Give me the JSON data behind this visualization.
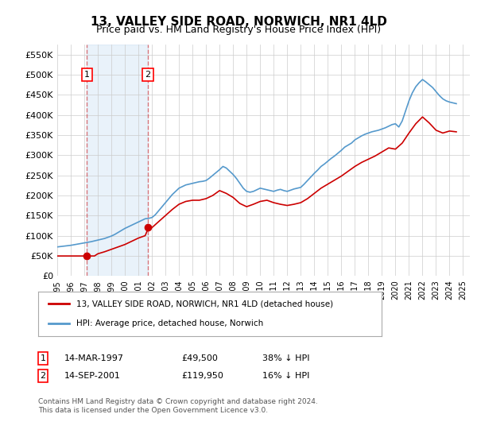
{
  "title": "13, VALLEY SIDE ROAD, NORWICH, NR1 4LD",
  "subtitle": "Price paid vs. HM Land Registry's House Price Index (HPI)",
  "ylabel": "",
  "xlim": [
    1995.0,
    2025.5
  ],
  "ylim": [
    0,
    575000
  ],
  "yticks": [
    0,
    50000,
    100000,
    150000,
    200000,
    250000,
    300000,
    350000,
    400000,
    450000,
    500000,
    550000
  ],
  "ytick_labels": [
    "£0",
    "£50K",
    "£100K",
    "£150K",
    "£200K",
    "£250K",
    "£300K",
    "£350K",
    "£400K",
    "£450K",
    "£500K",
    "£550K"
  ],
  "xticks": [
    1995,
    1996,
    1997,
    1998,
    1999,
    2000,
    2001,
    2002,
    2003,
    2004,
    2005,
    2006,
    2007,
    2008,
    2009,
    2010,
    2011,
    2012,
    2013,
    2014,
    2015,
    2016,
    2017,
    2018,
    2019,
    2020,
    2021,
    2022,
    2023,
    2024,
    2025
  ],
  "purchase1_x": 1997.2,
  "purchase1_y": 49500,
  "purchase1_label": "1",
  "purchase2_x": 2001.7,
  "purchase2_y": 119950,
  "purchase2_label": "2",
  "line_red_color": "#cc0000",
  "line_blue_color": "#5599cc",
  "vline_color": "#cc0000",
  "vline_alpha": 0.5,
  "shade_color": "#aaccee",
  "shade_alpha": 0.25,
  "legend_line1": "13, VALLEY SIDE ROAD, NORWICH, NR1 4LD (detached house)",
  "legend_line2": "HPI: Average price, detached house, Norwich",
  "table_row1": [
    "1",
    "14-MAR-1997",
    "£49,500",
    "38% ↓ HPI"
  ],
  "table_row2": [
    "2",
    "14-SEP-2001",
    "£119,950",
    "16% ↓ HPI"
  ],
  "footer": "Contains HM Land Registry data © Crown copyright and database right 2024.\nThis data is licensed under the Open Government Licence v3.0.",
  "background_color": "#ffffff",
  "grid_color": "#cccccc",
  "hpi_data_x": [
    1995.0,
    1995.25,
    1995.5,
    1995.75,
    1996.0,
    1996.25,
    1996.5,
    1996.75,
    1997.0,
    1997.25,
    1997.5,
    1997.75,
    1998.0,
    1998.25,
    1998.5,
    1998.75,
    1999.0,
    1999.25,
    1999.5,
    1999.75,
    2000.0,
    2000.25,
    2000.5,
    2000.75,
    2001.0,
    2001.25,
    2001.5,
    2001.75,
    2002.0,
    2002.25,
    2002.5,
    2002.75,
    2003.0,
    2003.25,
    2003.5,
    2003.75,
    2004.0,
    2004.25,
    2004.5,
    2004.75,
    2005.0,
    2005.25,
    2005.5,
    2005.75,
    2006.0,
    2006.25,
    2006.5,
    2006.75,
    2007.0,
    2007.25,
    2007.5,
    2007.75,
    2008.0,
    2008.25,
    2008.5,
    2008.75,
    2009.0,
    2009.25,
    2009.5,
    2009.75,
    2010.0,
    2010.25,
    2010.5,
    2010.75,
    2011.0,
    2011.25,
    2011.5,
    2011.75,
    2012.0,
    2012.25,
    2012.5,
    2012.75,
    2013.0,
    2013.25,
    2013.5,
    2013.75,
    2014.0,
    2014.25,
    2014.5,
    2014.75,
    2015.0,
    2015.25,
    2015.5,
    2015.75,
    2016.0,
    2016.25,
    2016.5,
    2016.75,
    2017.0,
    2017.25,
    2017.5,
    2017.75,
    2018.0,
    2018.25,
    2018.5,
    2018.75,
    2019.0,
    2019.25,
    2019.5,
    2019.75,
    2020.0,
    2020.25,
    2020.5,
    2020.75,
    2021.0,
    2021.25,
    2021.5,
    2021.75,
    2022.0,
    2022.25,
    2022.5,
    2022.75,
    2023.0,
    2023.25,
    2023.5,
    2023.75,
    2024.0,
    2024.25,
    2024.5
  ],
  "hpi_data_y": [
    72000,
    73000,
    74000,
    75000,
    76000,
    77500,
    79000,
    80500,
    82000,
    83500,
    85000,
    87000,
    89000,
    91000,
    93000,
    96000,
    99000,
    103000,
    108000,
    113000,
    118000,
    122000,
    126000,
    130000,
    134000,
    138000,
    142000,
    143000,
    145000,
    152000,
    162000,
    172000,
    182000,
    192000,
    202000,
    210000,
    218000,
    222000,
    226000,
    228000,
    230000,
    232000,
    234000,
    235000,
    237000,
    243000,
    250000,
    257000,
    264000,
    272000,
    268000,
    260000,
    252000,
    242000,
    230000,
    218000,
    210000,
    208000,
    210000,
    214000,
    218000,
    216000,
    214000,
    212000,
    210000,
    213000,
    215000,
    212000,
    210000,
    213000,
    216000,
    218000,
    220000,
    228000,
    237000,
    246000,
    255000,
    263000,
    272000,
    278000,
    285000,
    292000,
    298000,
    305000,
    312000,
    320000,
    325000,
    330000,
    338000,
    343000,
    348000,
    352000,
    355000,
    358000,
    360000,
    362000,
    365000,
    368000,
    372000,
    376000,
    378000,
    370000,
    385000,
    410000,
    435000,
    455000,
    470000,
    480000,
    488000,
    482000,
    475000,
    468000,
    458000,
    448000,
    440000,
    435000,
    432000,
    430000,
    428000
  ],
  "price_data_x": [
    1995.0,
    1995.5,
    1996.0,
    1996.5,
    1997.0,
    1997.25,
    1997.5,
    1997.75,
    1998.0,
    1998.5,
    1999.0,
    1999.5,
    2000.0,
    2000.5,
    2001.0,
    2001.5,
    2001.75,
    2002.0,
    2002.5,
    2003.0,
    2003.5,
    2004.0,
    2004.5,
    2005.0,
    2005.5,
    2006.0,
    2006.5,
    2007.0,
    2007.5,
    2008.0,
    2008.5,
    2009.0,
    2009.5,
    2010.0,
    2010.5,
    2011.0,
    2011.5,
    2012.0,
    2012.5,
    2013.0,
    2013.5,
    2014.0,
    2014.5,
    2015.0,
    2015.5,
    2016.0,
    2016.5,
    2017.0,
    2017.5,
    2018.0,
    2018.5,
    2019.0,
    2019.5,
    2020.0,
    2020.5,
    2021.0,
    2021.5,
    2022.0,
    2022.5,
    2023.0,
    2023.5,
    2024.0,
    2024.5
  ],
  "price_data_y": [
    49500,
    49500,
    49500,
    49500,
    49500,
    49500,
    49500,
    49500,
    55000,
    60000,
    66000,
    72000,
    78000,
    86000,
    94000,
    100000,
    119950,
    119950,
    135000,
    150000,
    165000,
    178000,
    185000,
    188000,
    188000,
    192000,
    200000,
    212000,
    205000,
    195000,
    180000,
    172000,
    178000,
    185000,
    188000,
    182000,
    178000,
    175000,
    178000,
    182000,
    192000,
    205000,
    218000,
    228000,
    238000,
    248000,
    260000,
    272000,
    282000,
    290000,
    298000,
    308000,
    318000,
    315000,
    330000,
    355000,
    378000,
    395000,
    380000,
    362000,
    355000,
    360000,
    358000
  ]
}
